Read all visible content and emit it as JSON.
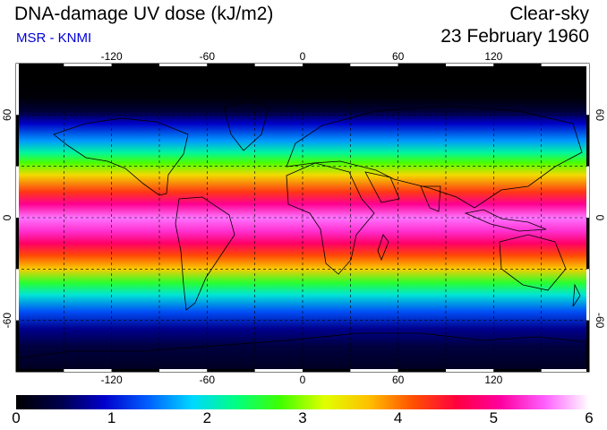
{
  "header": {
    "title": "DNA-damage UV dose (kJ/m2)",
    "source": "MSR - KNMI",
    "sky_condition": "Clear-sky",
    "date": "23 February 1960"
  },
  "map": {
    "projection": "equirectangular",
    "lon_range": [
      -180,
      180
    ],
    "lat_range": [
      -90,
      90
    ],
    "lon_ticks": [
      "-120",
      "-60",
      "0",
      "60",
      "120"
    ],
    "lat_ticks": [
      "60",
      "0",
      "-60"
    ],
    "graticule": "dashed"
  },
  "colorbar": {
    "ticks": [
      "0",
      "1",
      "2",
      "3",
      "4",
      "5",
      "6"
    ],
    "colors": [
      "#000000",
      "#00004a",
      "#0000cc",
      "#0060ff",
      "#00d8ff",
      "#00ff80",
      "#40ff00",
      "#e0ff00",
      "#ffc000",
      "#ff5000",
      "#ff0040",
      "#ff00a0",
      "#ff60ff",
      "#ffffff"
    ]
  },
  "dose_profile": [
    {
      "lat": 90,
      "dose": 0.0
    },
    {
      "lat": 80,
      "dose": 0.0
    },
    {
      "lat": 70,
      "dose": 0.05
    },
    {
      "lat": 62,
      "dose": 0.35
    },
    {
      "lat": 55,
      "dose": 0.9
    },
    {
      "lat": 45,
      "dose": 1.6
    },
    {
      "lat": 38,
      "dose": 2.2
    },
    {
      "lat": 32,
      "dose": 2.8
    },
    {
      "lat": 25,
      "dose": 3.5
    },
    {
      "lat": 15,
      "dose": 4.3
    },
    {
      "lat": 8,
      "dose": 5.0
    },
    {
      "lat": 0,
      "dose": 5.6
    },
    {
      "lat": -8,
      "dose": 5.3
    },
    {
      "lat": -15,
      "dose": 4.8
    },
    {
      "lat": -22,
      "dose": 4.2
    },
    {
      "lat": -30,
      "dose": 3.6
    },
    {
      "lat": -38,
      "dose": 2.6
    },
    {
      "lat": -45,
      "dose": 2.0
    },
    {
      "lat": -55,
      "dose": 1.3
    },
    {
      "lat": -65,
      "dose": 0.7
    },
    {
      "lat": -75,
      "dose": 0.4
    },
    {
      "lat": -90,
      "dose": 0.2
    }
  ]
}
